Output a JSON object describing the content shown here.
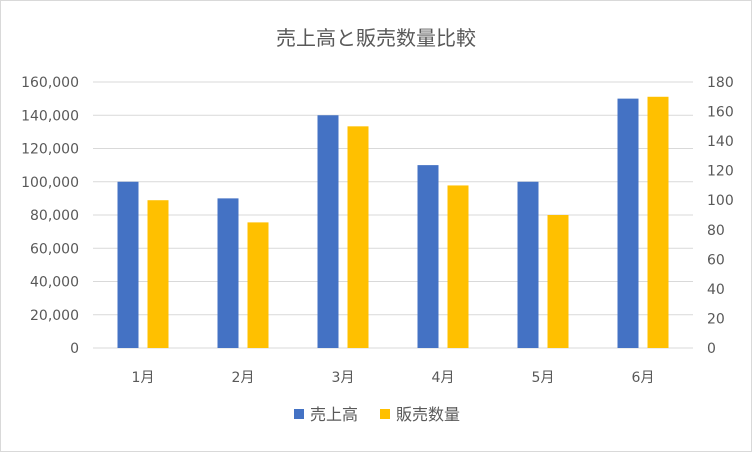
{
  "chart_data": {
    "type": "bar",
    "title": "売上高と販売数量比較",
    "categories": [
      "1月",
      "2月",
      "3月",
      "4月",
      "5月",
      "6月"
    ],
    "series": [
      {
        "name": "売上高",
        "axis": "left",
        "color": "#4472C4",
        "values": [
          100000,
          90000,
          140000,
          110000,
          100000,
          150000
        ]
      },
      {
        "name": "販売数量",
        "axis": "right",
        "color": "#FFC000",
        "values": [
          100,
          85,
          150,
          110,
          90,
          170
        ]
      }
    ],
    "y_left": {
      "ylim": [
        0,
        160000
      ],
      "ticks": [
        0,
        20000,
        40000,
        60000,
        80000,
        100000,
        120000,
        140000,
        160000
      ],
      "tick_labels": [
        "0",
        "20,000",
        "40,000",
        "60,000",
        "80,000",
        "100,000",
        "120,000",
        "140,000",
        "160,000"
      ]
    },
    "y_right": {
      "ylim": [
        0,
        180
      ],
      "ticks": [
        0,
        20,
        40,
        60,
        80,
        100,
        120,
        140,
        160,
        180
      ],
      "tick_labels": [
        "0",
        "20",
        "40",
        "60",
        "80",
        "100",
        "120",
        "140",
        "160",
        "180"
      ]
    },
    "grid": true,
    "legend_position": "bottom",
    "colors": {
      "gridline": "#d9d9d9",
      "axis_line": "#d9d9d9",
      "text": "#595959"
    }
  }
}
